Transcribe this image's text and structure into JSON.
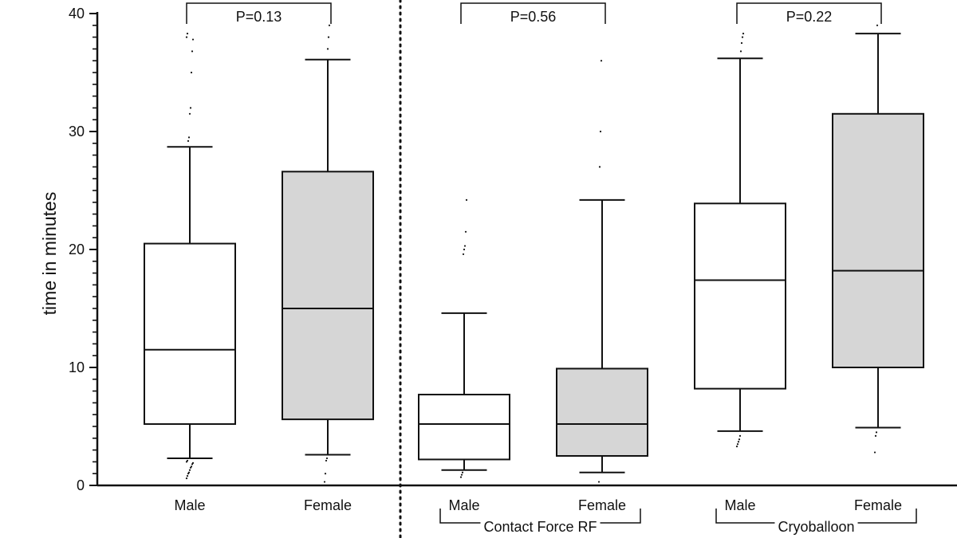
{
  "chart_data": {
    "type": "box",
    "ylabel": "time in minutes",
    "ylim": [
      0,
      40
    ],
    "yticks": [
      "0",
      "10",
      "20",
      "30",
      "40"
    ],
    "boxes": [
      {
        "category": "Male",
        "fill": "#ffffff",
        "whisker_low": 2.3,
        "q1": 5.2,
        "median": 11.5,
        "q3": 20.5,
        "whisker_high": 28.7,
        "outliers": [
          0.6,
          0.8,
          1.0,
          1.1,
          1.3,
          1.5,
          1.6,
          1.8,
          1.9,
          2.0,
          2.1,
          29.2,
          29.5,
          31.5,
          32.0,
          35.0,
          36.8,
          37.8,
          38.0,
          38.3
        ]
      },
      {
        "category": "Female",
        "fill": "#d6d6d6",
        "whisker_low": 2.6,
        "q1": 5.6,
        "median": 15.0,
        "q3": 26.6,
        "whisker_high": 36.1,
        "outliers": [
          0.3,
          1.0,
          2.1,
          2.3,
          37.0,
          38.0,
          39.0
        ]
      },
      {
        "category": "Male",
        "fill": "#ffffff",
        "whisker_low": 1.3,
        "q1": 2.2,
        "median": 5.2,
        "q3": 7.7,
        "whisker_high": 14.6,
        "outliers": [
          0.7,
          0.9,
          1.1,
          19.6,
          20.0,
          20.3,
          21.5,
          24.2
        ]
      },
      {
        "category": "Female",
        "fill": "#d6d6d6",
        "whisker_low": 1.1,
        "q1": 2.5,
        "median": 5.2,
        "q3": 9.9,
        "whisker_high": 24.2,
        "outliers": [
          0.3,
          27.0,
          30.0,
          36.0
        ]
      },
      {
        "category": "Male",
        "fill": "#ffffff",
        "whisker_low": 4.6,
        "q1": 8.2,
        "median": 17.4,
        "q3": 23.9,
        "whisker_high": 36.2,
        "outliers": [
          3.3,
          3.5,
          3.7,
          3.9,
          4.2,
          36.8,
          37.5,
          38.0,
          38.3
        ]
      },
      {
        "category": "Female",
        "fill": "#d6d6d6",
        "whisker_low": 4.9,
        "q1": 10.0,
        "median": 18.2,
        "q3": 31.5,
        "whisker_high": 38.3,
        "outliers": [
          2.8,
          4.2,
          4.5,
          39.0
        ]
      }
    ],
    "comparisons": [
      {
        "between": [
          0,
          1
        ],
        "label": "P=0.13"
      },
      {
        "between": [
          2,
          3
        ],
        "label": "P=0.56"
      },
      {
        "between": [
          4,
          5
        ],
        "label": "P=0.22"
      }
    ],
    "groups": [
      {
        "label": "Contact Force RF",
        "between": [
          2,
          3
        ]
      },
      {
        "label": "Cryoballoon",
        "between": [
          4,
          5
        ]
      }
    ],
    "separator": "dotted vertical line between the first pair and the grouped pairs",
    "grid": false
  }
}
